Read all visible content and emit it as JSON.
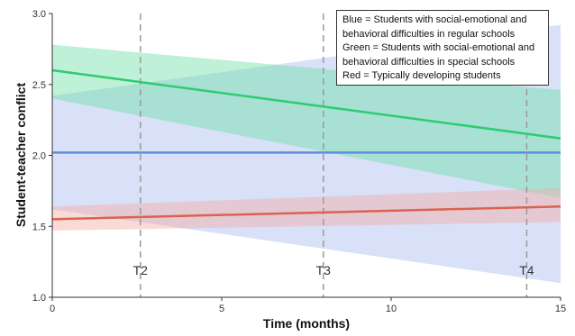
{
  "chart_data": {
    "type": "line",
    "xlabel": "Time (months)",
    "ylabel": "Student-teacher conflict",
    "xlim": [
      0,
      15
    ],
    "ylim": [
      1.0,
      3.0
    ],
    "x_ticks": [
      "0",
      "5",
      "10",
      "15"
    ],
    "y_ticks": [
      "1.0",
      "1.5",
      "2.0",
      "2.5",
      "3.0"
    ],
    "grid": false,
    "time_markers": [
      {
        "label": "T2",
        "x": 2.6
      },
      {
        "label": "T3",
        "x": 8.0
      },
      {
        "label": "T4",
        "x": 14.0
      }
    ],
    "legend": {
      "placement": "top-right",
      "lines": [
        "Blue = Students with social-emotional and",
        "behavioral difficulties in regular schools",
        "Green = Students with social-emotional and",
        "behavioral difficulties in special schools",
        "Red = Typically developing students"
      ]
    },
    "series": [
      {
        "color": "#5b8fd9",
        "band_color": "#a8bdf0",
        "x": [
          0,
          15
        ],
        "values": [
          2.02,
          2.02
        ],
        "ci_lower": [
          1.62,
          1.1
        ],
        "ci_upper": [
          2.42,
          2.92
        ]
      },
      {
        "color": "#2ecc71",
        "band_color": "#6fe0a6",
        "x": [
          0,
          15
        ],
        "values": [
          2.6,
          2.12
        ],
        "ci_lower": [
          2.4,
          1.7
        ],
        "ci_upper": [
          2.78,
          2.46
        ]
      },
      {
        "color": "#d9634f",
        "band_color": "#f3aca3",
        "x": [
          0,
          15
        ],
        "values": [
          1.55,
          1.64
        ],
        "ci_lower": [
          1.47,
          1.53
        ],
        "ci_upper": [
          1.64,
          1.77
        ]
      }
    ]
  }
}
